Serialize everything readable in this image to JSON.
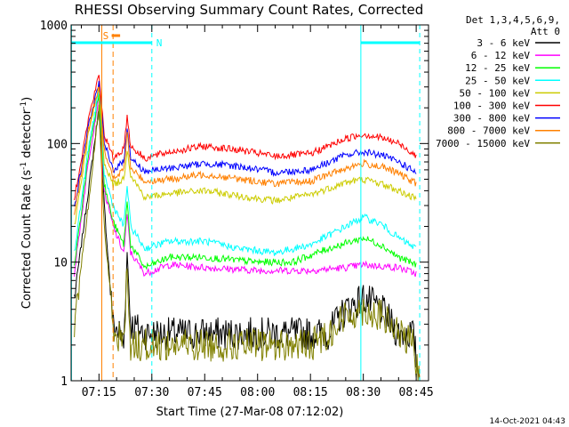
{
  "chart_data": {
    "type": "line",
    "title": "RHESSI Observing Summary Count Rates, Corrected",
    "xlabel": "Start Time (27-Mar-08 07:12:02)",
    "ylabel_main": "Corrected Count Rate (s",
    "ylabel_sup1": "-1",
    "ylabel_mid": " detector",
    "ylabel_sup2": "-1",
    "ylabel_end": ")",
    "yscale": "log",
    "ylim": [
      1,
      1000
    ],
    "xlim_minutes": [
      7.1,
      91.5
    ],
    "x_ticks": [
      {
        "label": "07:15",
        "minute": 15
      },
      {
        "label": "07:30",
        "minute": 30
      },
      {
        "label": "07:45",
        "minute": 45
      },
      {
        "label": "08:00",
        "minute": 60
      },
      {
        "label": "08:15",
        "minute": 75
      },
      {
        "label": "08:30",
        "minute": 90
      },
      {
        "label": "08:45",
        "minute": 105
      }
    ],
    "y_ticks": [
      {
        "label": "1",
        "value": 1
      },
      {
        "label": "10",
        "value": 10
      },
      {
        "label": "100",
        "value": 100
      },
      {
        "label": "1000",
        "value": 1000
      }
    ],
    "legend_header": [
      "Det 1,3,4,5,6,9,",
      "Att 0"
    ],
    "legend_position": "right",
    "series": [
      {
        "name": "3 - 6 keV",
        "color": "#000000",
        "points": [
          [
            8,
            5
          ],
          [
            12,
            40
          ],
          [
            15,
            200
          ],
          [
            16.5,
            30
          ],
          [
            19,
            3
          ],
          [
            21,
            2.5
          ],
          [
            22,
            2
          ],
          [
            23,
            12
          ],
          [
            24,
            3
          ],
          [
            28,
            2.5
          ],
          [
            35,
            2.5
          ],
          [
            45,
            2.5
          ],
          [
            60,
            2.5
          ],
          [
            70,
            2.5
          ],
          [
            80,
            2.5
          ],
          [
            85,
            4
          ],
          [
            90,
            5
          ],
          [
            95,
            4
          ],
          [
            100,
            2.5
          ],
          [
            104,
            2.5
          ],
          [
            106,
            1
          ]
        ]
      },
      {
        "name": "6 - 12 keV",
        "color": "#ff00ff",
        "points": [
          [
            8,
            8
          ],
          [
            12,
            70
          ],
          [
            15,
            250
          ],
          [
            16.5,
            40
          ],
          [
            19,
            20
          ],
          [
            22,
            12
          ],
          [
            23,
            25
          ],
          [
            24,
            12
          ],
          [
            28,
            8
          ],
          [
            35,
            9.5
          ],
          [
            45,
            9
          ],
          [
            60,
            8.5
          ],
          [
            75,
            8.5
          ],
          [
            85,
            9
          ],
          [
            90,
            9.5
          ],
          [
            100,
            9
          ],
          [
            105,
            8
          ]
        ]
      },
      {
        "name": "12 - 25 keV",
        "color": "#00ff00",
        "points": [
          [
            8,
            9
          ],
          [
            12,
            80
          ],
          [
            15,
            270
          ],
          [
            16.5,
            45
          ],
          [
            19,
            22
          ],
          [
            22,
            14
          ],
          [
            23,
            32
          ],
          [
            24,
            14
          ],
          [
            28,
            9
          ],
          [
            35,
            11
          ],
          [
            45,
            11
          ],
          [
            60,
            10
          ],
          [
            70,
            10
          ],
          [
            80,
            13
          ],
          [
            90,
            16
          ],
          [
            95,
            14
          ],
          [
            100,
            11
          ],
          [
            105,
            9.5
          ]
        ]
      },
      {
        "name": "25 - 50 keV",
        "color": "#00ffff",
        "points": [
          [
            8,
            12
          ],
          [
            12,
            90
          ],
          [
            15,
            290
          ],
          [
            16.5,
            55
          ],
          [
            19,
            30
          ],
          [
            22,
            20
          ],
          [
            23,
            45
          ],
          [
            24,
            20
          ],
          [
            28,
            13
          ],
          [
            35,
            15
          ],
          [
            45,
            15
          ],
          [
            55,
            13
          ],
          [
            65,
            12
          ],
          [
            75,
            14
          ],
          [
            85,
            20
          ],
          [
            90,
            24
          ],
          [
            95,
            21
          ],
          [
            100,
            16
          ],
          [
            105,
            13
          ]
        ]
      },
      {
        "name": "50 - 100 keV",
        "color": "#cccc00",
        "points": [
          [
            8,
            20
          ],
          [
            12,
            120
          ],
          [
            15,
            300
          ],
          [
            16.5,
            70
          ],
          [
            19,
            45
          ],
          [
            22,
            50
          ],
          [
            23,
            90
          ],
          [
            24,
            55
          ],
          [
            28,
            35
          ],
          [
            35,
            38
          ],
          [
            45,
            40
          ],
          [
            55,
            36
          ],
          [
            65,
            33
          ],
          [
            75,
            37
          ],
          [
            85,
            47
          ],
          [
            90,
            50
          ],
          [
            95,
            46
          ],
          [
            100,
            40
          ],
          [
            105,
            34
          ]
        ]
      },
      {
        "name": "100 - 300 keV",
        "color": "#ff0000",
        "points": [
          [
            8,
            35
          ],
          [
            12,
            160
          ],
          [
            15,
            380
          ],
          [
            16.5,
            120
          ],
          [
            19,
            75
          ],
          [
            22,
            90
          ],
          [
            23,
            170
          ],
          [
            24,
            95
          ],
          [
            28,
            75
          ],
          [
            35,
            85
          ],
          [
            45,
            95
          ],
          [
            55,
            88
          ],
          [
            65,
            78
          ],
          [
            75,
            82
          ],
          [
            85,
            110
          ],
          [
            90,
            120
          ],
          [
            95,
            112
          ],
          [
            100,
            100
          ],
          [
            105,
            80
          ]
        ]
      },
      {
        "name": "300 - 800 keV",
        "color": "#0000ff",
        "points": [
          [
            8,
            28
          ],
          [
            12,
            140
          ],
          [
            15,
            330
          ],
          [
            16.5,
            100
          ],
          [
            19,
            60
          ],
          [
            22,
            70
          ],
          [
            23,
            140
          ],
          [
            24,
            75
          ],
          [
            28,
            58
          ],
          [
            35,
            62
          ],
          [
            45,
            68
          ],
          [
            55,
            64
          ],
          [
            65,
            57
          ],
          [
            75,
            60
          ],
          [
            85,
            80
          ],
          [
            90,
            85
          ],
          [
            95,
            80
          ],
          [
            100,
            70
          ],
          [
            105,
            57
          ]
        ]
      },
      {
        "name": "800 - 7000 keV",
        "color": "#ff8000",
        "points": [
          [
            8,
            24
          ],
          [
            12,
            130
          ],
          [
            15,
            310
          ],
          [
            16.5,
            90
          ],
          [
            19,
            50
          ],
          [
            22,
            60
          ],
          [
            23,
            120
          ],
          [
            24,
            62
          ],
          [
            28,
            48
          ],
          [
            35,
            50
          ],
          [
            45,
            55
          ],
          [
            55,
            50
          ],
          [
            65,
            46
          ],
          [
            75,
            48
          ],
          [
            85,
            62
          ],
          [
            90,
            68
          ],
          [
            95,
            64
          ],
          [
            100,
            56
          ],
          [
            105,
            46
          ]
        ]
      },
      {
        "name": "7000 - 15000 keV",
        "color": "#808000",
        "points": [
          [
            8,
            3
          ],
          [
            12,
            30
          ],
          [
            15,
            200
          ],
          [
            16.5,
            20
          ],
          [
            19,
            3
          ],
          [
            22,
            2
          ],
          [
            23,
            9
          ],
          [
            24,
            2
          ],
          [
            28,
            2
          ],
          [
            35,
            2
          ],
          [
            45,
            2
          ],
          [
            55,
            2
          ],
          [
            65,
            2
          ],
          [
            75,
            2
          ],
          [
            80,
            2.5
          ],
          [
            85,
            3.5
          ],
          [
            90,
            4
          ],
          [
            95,
            3.5
          ],
          [
            100,
            2.5
          ],
          [
            104,
            2
          ],
          [
            106,
            1
          ]
        ]
      }
    ],
    "annotations": {
      "saa_label": "S",
      "night_label": "N",
      "orange_vlines": [
        15.8,
        19.0
      ],
      "cyan_vlines": [
        7.2,
        30.0,
        89.3,
        106.0
      ],
      "saa_bar": [
        18.6,
        21.0
      ],
      "night_bars": [
        [
          7.2,
          30.0
        ],
        [
          89.3,
          106.0
        ]
      ]
    },
    "footer_date": "14-Oct-2021 04:43"
  }
}
